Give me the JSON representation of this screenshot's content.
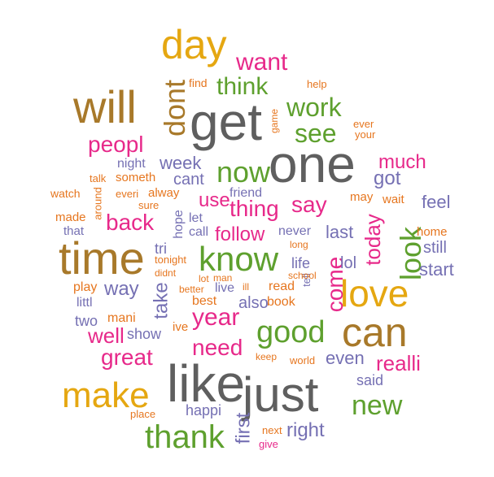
{
  "colors": {
    "gray": "#5f5f5f",
    "olive": "#a8792a",
    "gold": "#e5a711",
    "green": "#5ea02e",
    "magenta": "#e7298a",
    "orange": "#e6761f",
    "blue": "#7570b3"
  },
  "words": [
    {
      "text": "like",
      "color": "gray"
    },
    {
      "text": "just",
      "color": "gray"
    },
    {
      "text": "get",
      "color": "gray"
    },
    {
      "text": "one",
      "color": "gray"
    },
    {
      "text": "will",
      "color": "olive"
    },
    {
      "text": "time",
      "color": "olive"
    },
    {
      "text": "can",
      "color": "olive"
    },
    {
      "text": "day",
      "color": "gold"
    },
    {
      "text": "love",
      "color": "gold"
    },
    {
      "text": "make",
      "color": "gold"
    },
    {
      "text": "know",
      "color": "green"
    },
    {
      "text": "good",
      "color": "green"
    },
    {
      "text": "thank",
      "color": "green"
    },
    {
      "text": "new",
      "color": "green"
    },
    {
      "text": "now",
      "color": "green"
    },
    {
      "text": "look",
      "color": "green"
    },
    {
      "text": "work",
      "color": "green"
    },
    {
      "text": "see",
      "color": "green"
    },
    {
      "text": "think",
      "color": "green"
    },
    {
      "text": "dont",
      "color": "olive"
    },
    {
      "text": "want",
      "color": "magenta"
    },
    {
      "text": "peopl",
      "color": "magenta"
    },
    {
      "text": "year",
      "color": "magenta"
    },
    {
      "text": "back",
      "color": "magenta"
    },
    {
      "text": "great",
      "color": "magenta"
    },
    {
      "text": "need",
      "color": "magenta"
    },
    {
      "text": "come",
      "color": "magenta"
    },
    {
      "text": "today",
      "color": "magenta"
    },
    {
      "text": "realli",
      "color": "magenta"
    },
    {
      "text": "much",
      "color": "magenta"
    },
    {
      "text": "say",
      "color": "magenta"
    },
    {
      "text": "thing",
      "color": "magenta"
    },
    {
      "text": "follow",
      "color": "magenta"
    },
    {
      "text": "use",
      "color": "magenta"
    },
    {
      "text": "well",
      "color": "magenta"
    },
    {
      "text": "first",
      "color": "blue"
    },
    {
      "text": "right",
      "color": "blue"
    },
    {
      "text": "way",
      "color": "blue"
    },
    {
      "text": "take",
      "color": "blue"
    },
    {
      "text": "even",
      "color": "blue"
    },
    {
      "text": "last",
      "color": "blue"
    },
    {
      "text": "also",
      "color": "blue"
    },
    {
      "text": "got",
      "color": "blue"
    },
    {
      "text": "feel",
      "color": "blue"
    },
    {
      "text": "week",
      "color": "blue"
    },
    {
      "text": "cant",
      "color": "blue"
    },
    {
      "text": "start",
      "color": "blue"
    },
    {
      "text": "still",
      "color": "blue"
    },
    {
      "text": "lol",
      "color": "blue"
    },
    {
      "text": "life",
      "color": "blue"
    },
    {
      "text": "said",
      "color": "blue"
    },
    {
      "text": "happi",
      "color": "blue"
    },
    {
      "text": "show",
      "color": "blue"
    },
    {
      "text": "two",
      "color": "blue"
    },
    {
      "text": "friend",
      "color": "blue"
    },
    {
      "text": "night",
      "color": "blue"
    },
    {
      "text": "call",
      "color": "blue"
    },
    {
      "text": "let",
      "color": "blue"
    },
    {
      "text": "hope",
      "color": "blue"
    },
    {
      "text": "tri",
      "color": "blue"
    },
    {
      "text": "littl",
      "color": "blue"
    },
    {
      "text": "live",
      "color": "blue"
    },
    {
      "text": "that",
      "color": "blue"
    },
    {
      "text": "never",
      "color": "blue"
    },
    {
      "text": "tell",
      "color": "blue"
    },
    {
      "text": "book",
      "color": "orange"
    },
    {
      "text": "read",
      "color": "orange"
    },
    {
      "text": "best",
      "color": "orange"
    },
    {
      "text": "mani",
      "color": "orange"
    },
    {
      "text": "play",
      "color": "orange"
    },
    {
      "text": "ive",
      "color": "orange"
    },
    {
      "text": "made",
      "color": "orange"
    },
    {
      "text": "home",
      "color": "orange"
    },
    {
      "text": "may",
      "color": "orange"
    },
    {
      "text": "wait",
      "color": "orange"
    },
    {
      "text": "watch",
      "color": "orange"
    },
    {
      "text": "someth",
      "color": "orange"
    },
    {
      "text": "alway",
      "color": "orange"
    },
    {
      "text": "everi",
      "color": "orange"
    },
    {
      "text": "sure",
      "color": "orange"
    },
    {
      "text": "talk",
      "color": "orange"
    },
    {
      "text": "around",
      "color": "orange"
    },
    {
      "text": "find",
      "color": "orange"
    },
    {
      "text": "help",
      "color": "orange"
    },
    {
      "text": "game",
      "color": "orange"
    },
    {
      "text": "ever",
      "color": "orange"
    },
    {
      "text": "your",
      "color": "orange"
    },
    {
      "text": "tonight",
      "color": "orange"
    },
    {
      "text": "didnt",
      "color": "orange"
    },
    {
      "text": "lot",
      "color": "orange"
    },
    {
      "text": "man",
      "color": "orange"
    },
    {
      "text": "better",
      "color": "orange"
    },
    {
      "text": "ill",
      "color": "orange"
    },
    {
      "text": "school",
      "color": "orange"
    },
    {
      "text": "long",
      "color": "orange"
    },
    {
      "text": "keep",
      "color": "orange"
    },
    {
      "text": "world",
      "color": "orange"
    },
    {
      "text": "place",
      "color": "orange"
    },
    {
      "text": "next",
      "color": "orange"
    },
    {
      "text": "give",
      "color": "magenta"
    }
  ]
}
